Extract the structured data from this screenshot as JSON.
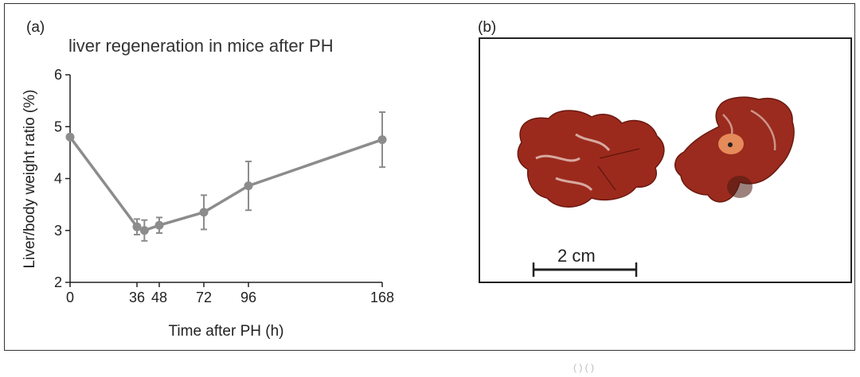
{
  "panel_a": {
    "label": "(a)"
  },
  "panel_b": {
    "label": "(b)",
    "scale_bar_label": "2 cm"
  },
  "chart_data": {
    "type": "line",
    "title": "liver regeneration in mice after PH",
    "xlabel": "Time after PH (h)",
    "ylabel": "Liver/body weight ratio (%)",
    "xlim": [
      0,
      168
    ],
    "ylim": [
      2,
      6
    ],
    "xticks": [
      0,
      36,
      48,
      72,
      96,
      168
    ],
    "xtick_labels": [
      "0",
      "36",
      "48",
      "72",
      "96",
      "168"
    ],
    "yticks": [
      2,
      3,
      4,
      5,
      6
    ],
    "series": [
      {
        "x": [
          0,
          36,
          40,
          48,
          72,
          96,
          168
        ],
        "y": [
          4.8,
          3.07,
          3.0,
          3.1,
          3.35,
          3.86,
          4.75
        ],
        "error": [
          0.0,
          0.15,
          0.2,
          0.15,
          0.33,
          0.47,
          0.53
        ],
        "color": "#8c8c8c"
      }
    ],
    "grid": false
  },
  "bottom_note": "( ) ( )"
}
